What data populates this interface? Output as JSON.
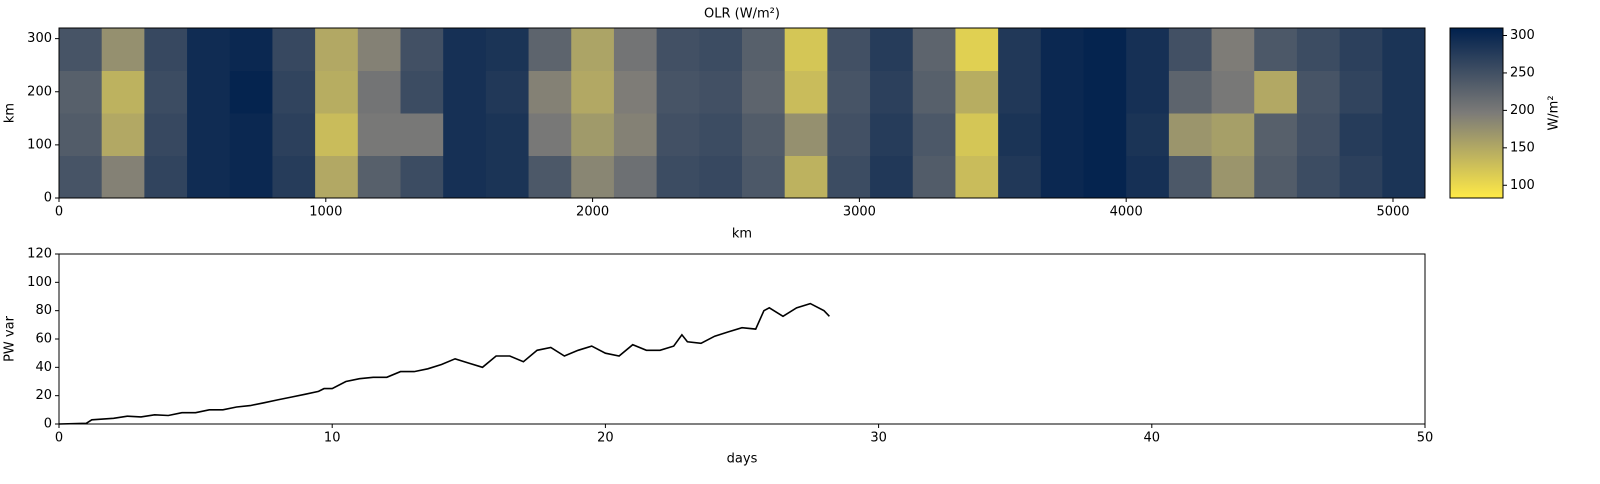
{
  "chart_data": [
    {
      "type": "heatmap",
      "title": "OLR (W/m²)",
      "xlabel": "km",
      "ylabel": "km",
      "xlim": [
        0,
        5120
      ],
      "ylim": [
        0,
        320
      ],
      "xticks": [
        0,
        1000,
        2000,
        3000,
        4000,
        5000
      ],
      "yticks": [
        0,
        100,
        200,
        300
      ],
      "values": [
        [
          245,
          190,
          265,
          295,
          300,
          275,
          150,
          230,
          255,
          290,
          285,
          240,
          185,
          210,
          255,
          260,
          240,
          140,
          255,
          280,
          235,
          130,
          280,
          300,
          305,
          290,
          240,
          170,
          235,
          255,
          270,
          285
        ],
        [
          235,
          150,
          260,
          295,
          300,
          270,
          130,
          200,
          200,
          290,
          285,
          200,
          165,
          190,
          250,
          255,
          235,
          175,
          250,
          275,
          240,
          120,
          285,
          300,
          305,
          285,
          170,
          160,
          230,
          250,
          275,
          285
        ],
        [
          230,
          140,
          255,
          295,
          305,
          265,
          145,
          205,
          255,
          290,
          280,
          190,
          150,
          195,
          245,
          250,
          225,
          130,
          245,
          270,
          230,
          145,
          280,
          300,
          305,
          290,
          225,
          200,
          150,
          245,
          265,
          285
        ],
        [
          245,
          175,
          260,
          295,
          300,
          260,
          150,
          190,
          250,
          290,
          285,
          225,
          155,
          205,
          250,
          255,
          230,
          120,
          250,
          275,
          225,
          110,
          280,
          300,
          305,
          290,
          250,
          195,
          240,
          255,
          270,
          285
        ]
      ],
      "clim": [
        83,
        310
      ],
      "cticks": [
        100,
        150,
        200,
        250,
        300
      ],
      "colorbar_label": "W/m²",
      "colormap_colors": [
        "#ffea46",
        "#7c7b78",
        "#00204d"
      ]
    },
    {
      "type": "line",
      "xlabel": "days",
      "ylabel": "PW var",
      "xlim": [
        0,
        50
      ],
      "ylim": [
        0,
        120
      ],
      "xticks": [
        0,
        10,
        20,
        30,
        40,
        50
      ],
      "yticks": [
        0,
        20,
        40,
        60,
        80,
        100,
        120
      ],
      "color": "#000000",
      "x": [
        0,
        1,
        1.2,
        2,
        2.5,
        3,
        3.5,
        4,
        4.5,
        5,
        5.5,
        6,
        6.5,
        7,
        7.5,
        8,
        8.5,
        9,
        9.5,
        9.7,
        10,
        10.5,
        11,
        11.5,
        12,
        12.5,
        13,
        13.5,
        14,
        14.5,
        15,
        15.5,
        16,
        16.5,
        17,
        17.5,
        18,
        18.5,
        19,
        19.5,
        20,
        20.5,
        21,
        21.5,
        22,
        22.5,
        22.8,
        23,
        23.5,
        24,
        24.5,
        25,
        25.5,
        25.8,
        26,
        26.5,
        27,
        27.5,
        28,
        28.2
      ],
      "values": [
        0,
        0.5,
        3,
        4,
        5.5,
        5,
        6.5,
        6,
        8,
        8,
        10,
        10,
        12,
        13,
        15,
        17,
        19,
        21,
        23,
        25,
        25,
        30,
        32,
        33,
        33,
        37,
        37,
        39,
        42,
        46,
        43,
        40,
        48,
        48,
        44,
        52,
        54,
        48,
        52,
        55,
        50,
        48,
        56,
        52,
        52,
        55,
        63,
        58,
        57,
        62,
        65,
        68,
        67,
        80,
        82,
        76,
        82,
        85,
        80,
        76
      ]
    }
  ]
}
